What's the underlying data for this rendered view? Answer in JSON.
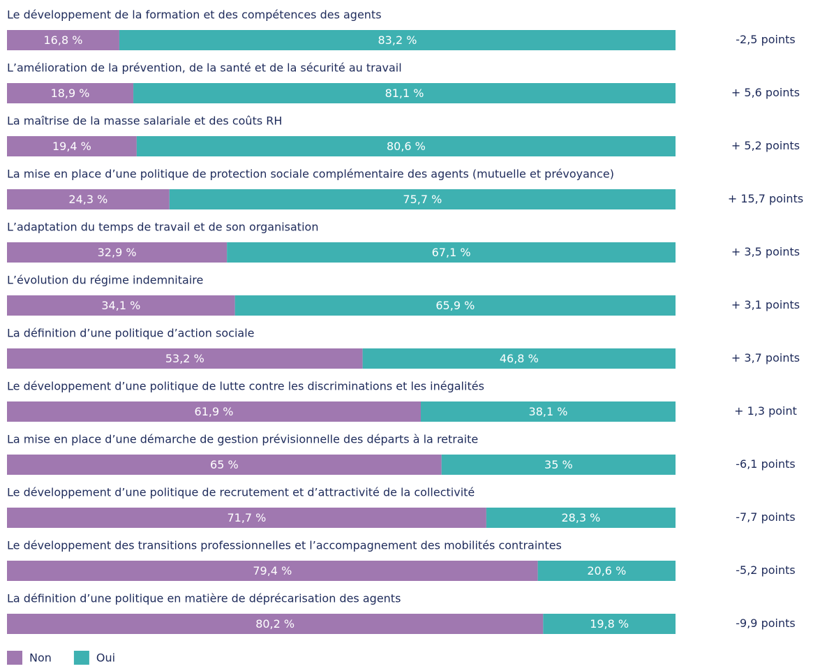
{
  "chart_data": {
    "type": "stacked-bar-horizontal",
    "categories": [
      "Le développement de la formation et des compétences des agents",
      "L’amélioration de la prévention, de la santé et de la sécurité au travail",
      "La maîtrise de la masse salariale et des coûts RH",
      "La mise en place d’une politique de protection sociale complémentaire des agents (mutuelle et prévoyance)",
      "L’adaptation du temps de travail et de son organisation",
      "L’évolution du régime indemnitaire",
      "La définition d’une politique d’action sociale",
      "Le développement d’une politique de lutte contre les discriminations et les inégalités",
      "La mise en place d’une démarche de gestion prévisionnelle des départs à la retraite",
      "Le développement d’une politique de recrutement et d’attractivité de la collectivité",
      "Le développement des transitions professionnelles et l’accompagnement des mobilités contraintes",
      "La définition d’une politique en matière de déprécarisation des agents"
    ],
    "series": [
      {
        "name": "Non",
        "color": "#a078b0",
        "values": [
          16.8,
          18.9,
          19.4,
          24.3,
          32.9,
          34.1,
          53.2,
          61.9,
          65,
          71.7,
          79.4,
          80.2
        ],
        "value_labels": [
          "16,8 %",
          "18,9 %",
          "19,4 %",
          "24,3 %",
          "32,9 %",
          "34,1 %",
          "53,2 %",
          "61,9 %",
          "65 %",
          "71,7 %",
          "79,4 %",
          "80,2 %"
        ]
      },
      {
        "name": "Oui",
        "color": "#3eb1b1",
        "values": [
          83.2,
          81.1,
          80.6,
          75.7,
          67.1,
          65.9,
          46.8,
          38.1,
          35,
          28.3,
          20.6,
          19.8
        ],
        "value_labels": [
          "83,2 %",
          "81,1 %",
          "80,6 %",
          "75,7 %",
          "67,1 %",
          "65,9 %",
          "46,8 %",
          "38,1 %",
          "35 %",
          "28,3 %",
          "20,6 %",
          "19,8 %"
        ]
      }
    ],
    "annotations": [
      "-2,5 points",
      "+ 5,6 points",
      "+ 5,2 points",
      "+ 15,7 points",
      "+ 3,5 points",
      "+ 3,1 points",
      "+ 3,7 points",
      "+ 1,3 point",
      "-6,1 points",
      "-7,7 points",
      "-5,2 points",
      "-9,9 points"
    ],
    "xlim": [
      0,
      100
    ]
  }
}
